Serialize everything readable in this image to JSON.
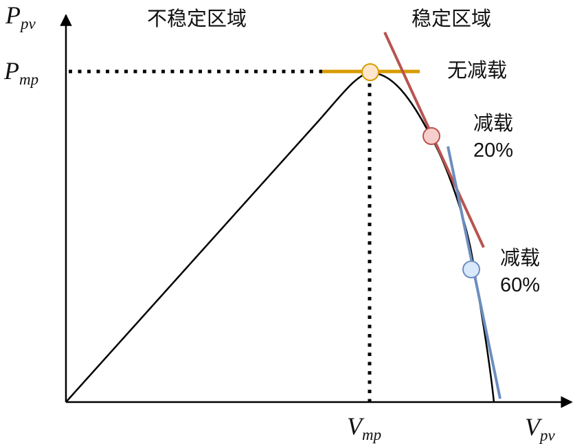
{
  "axes": {
    "y": {
      "main": "P",
      "sub": "pv"
    },
    "x": {
      "main": "V",
      "sub": "pv"
    },
    "ymark": {
      "main": "P",
      "sub": "mp"
    },
    "xmark": {
      "main": "V",
      "sub": "mp"
    }
  },
  "regions": {
    "unstable": "不稳定区域",
    "stable": "稳定区域"
  },
  "operating_points": [
    {
      "label": "无减载",
      "color": "#d79b00",
      "fill": "#ffe6cc"
    },
    {
      "label_line1": "减载",
      "label_line2": "20%",
      "color": "#b85450",
      "fill": "#f8cecc"
    },
    {
      "label_line1": "减载",
      "label_line2": "60%",
      "color": "#6c8ebf",
      "fill": "#dae8fc"
    }
  ],
  "colors": {
    "curve": "#000000",
    "axis": "#000000"
  }
}
